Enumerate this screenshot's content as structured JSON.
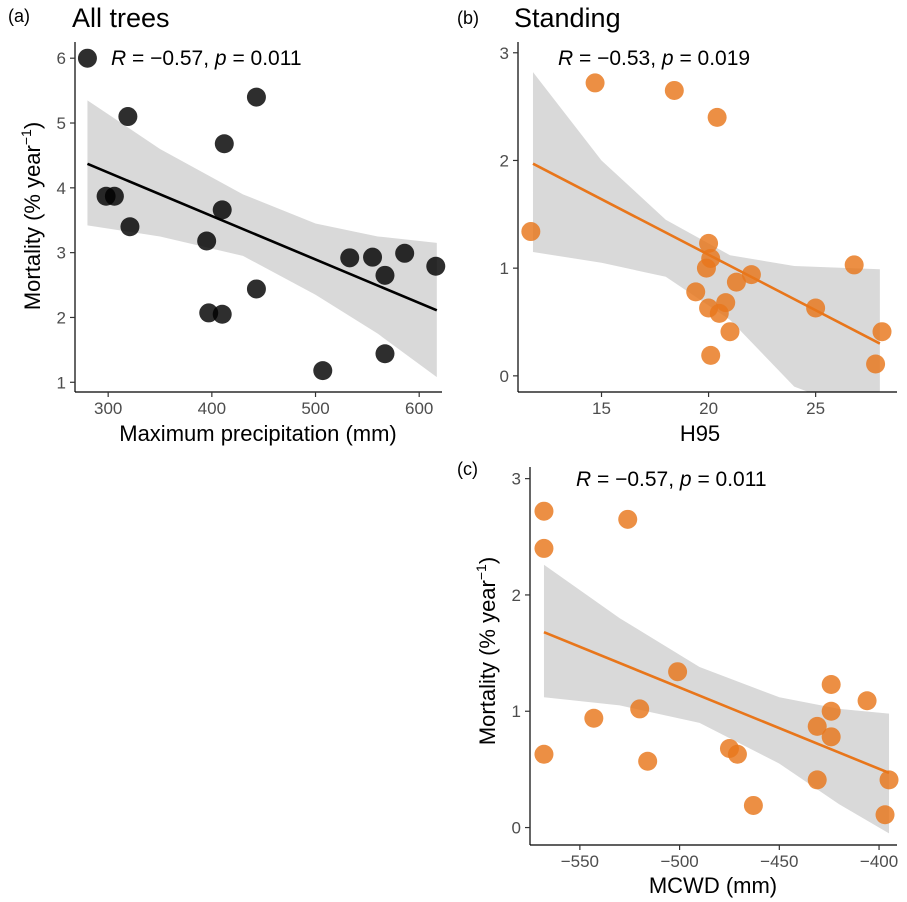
{
  "chart_data": [
    {
      "type": "scatter",
      "panel_label": "(a)",
      "title": "All trees",
      "stats": {
        "R": "R",
        "R_value": " = −0.57, ",
        "p": "p",
        "p_value": " = 0.011"
      },
      "xlabel": "Maximum precipitation (mm)",
      "ylabel": "Mortality (% year",
      "ylabel_sup": "−1",
      "ylabel_close": ")",
      "xlim": [
        268,
        622
      ],
      "ylim": [
        0.85,
        6.25
      ],
      "xticks": [
        300,
        400,
        500,
        600
      ],
      "yticks": [
        1,
        2,
        3,
        4,
        5,
        6
      ],
      "point_color": "#000000",
      "line_color": "#000000",
      "band_color": "#d9d9d9",
      "fit": {
        "x": [
          280,
          617
        ],
        "y": [
          4.37,
          2.11
        ]
      },
      "band_upper": [
        [
          280,
          5.35
        ],
        [
          350,
          4.6
        ],
        [
          430,
          3.9
        ],
        [
          500,
          3.45
        ],
        [
          560,
          3.25
        ],
        [
          617,
          3.15
        ]
      ],
      "band_lower": [
        [
          280,
          3.42
        ],
        [
          350,
          3.25
        ],
        [
          430,
          2.95
        ],
        [
          500,
          2.35
        ],
        [
          560,
          1.75
        ],
        [
          617,
          1.08
        ]
      ],
      "points": [
        {
          "x": 280,
          "y": 6.0
        },
        {
          "x": 319,
          "y": 5.1
        },
        {
          "x": 443,
          "y": 5.4
        },
        {
          "x": 412,
          "y": 4.68
        },
        {
          "x": 298,
          "y": 3.87
        },
        {
          "x": 306,
          "y": 3.87
        },
        {
          "x": 410,
          "y": 3.66
        },
        {
          "x": 321,
          "y": 3.4
        },
        {
          "x": 395,
          "y": 3.18
        },
        {
          "x": 533,
          "y": 2.92
        },
        {
          "x": 555,
          "y": 2.93
        },
        {
          "x": 586,
          "y": 2.99
        },
        {
          "x": 616,
          "y": 2.79
        },
        {
          "x": 567,
          "y": 2.65
        },
        {
          "x": 443,
          "y": 2.44
        },
        {
          "x": 397,
          "y": 2.07
        },
        {
          "x": 410,
          "y": 2.05
        },
        {
          "x": 567,
          "y": 1.44
        },
        {
          "x": 507,
          "y": 1.18
        }
      ]
    },
    {
      "type": "scatter",
      "panel_label": "(b)",
      "title": "Standing",
      "stats": {
        "R": "R",
        "R_value": " = −0.53, ",
        "p": "p",
        "p_value": " = 0.019"
      },
      "xlabel": "H95",
      "ylabel": "",
      "xlim": [
        11.1,
        28.8
      ],
      "ylim": [
        -0.15,
        3.1
      ],
      "xticks": [
        15,
        20,
        25
      ],
      "yticks": [
        0,
        1,
        2,
        3
      ],
      "point_color": "#e8761b",
      "line_color": "#e8761b",
      "band_color": "#d9d9d9",
      "fit": {
        "x": [
          11.8,
          28.0
        ],
        "y": [
          1.97,
          0.3
        ]
      },
      "band_upper": [
        [
          11.8,
          2.82
        ],
        [
          15,
          2.0
        ],
        [
          18,
          1.45
        ],
        [
          21,
          1.12
        ],
        [
          24,
          1.02
        ],
        [
          28,
          0.99
        ]
      ],
      "band_lower": [
        [
          11.8,
          1.15
        ],
        [
          15,
          1.05
        ],
        [
          18,
          0.92
        ],
        [
          21,
          0.52
        ],
        [
          24,
          -0.1
        ],
        [
          28,
          -0.4
        ]
      ],
      "points": [
        {
          "x": 14.7,
          "y": 2.72
        },
        {
          "x": 18.4,
          "y": 2.65
        },
        {
          "x": 20.4,
          "y": 2.4
        },
        {
          "x": 11.7,
          "y": 1.34
        },
        {
          "x": 20.0,
          "y": 1.23
        },
        {
          "x": 20.1,
          "y": 1.09
        },
        {
          "x": 19.9,
          "y": 1.0
        },
        {
          "x": 26.8,
          "y": 1.03
        },
        {
          "x": 22.0,
          "y": 0.94
        },
        {
          "x": 21.3,
          "y": 0.87
        },
        {
          "x": 19.4,
          "y": 0.78
        },
        {
          "x": 20.8,
          "y": 0.68
        },
        {
          "x": 20.0,
          "y": 0.63
        },
        {
          "x": 25.0,
          "y": 0.63
        },
        {
          "x": 20.5,
          "y": 0.58
        },
        {
          "x": 21.0,
          "y": 0.41
        },
        {
          "x": 28.1,
          "y": 0.41
        },
        {
          "x": 20.1,
          "y": 0.19
        },
        {
          "x": 27.8,
          "y": 0.11
        }
      ]
    },
    {
      "type": "scatter",
      "panel_label": "(c)",
      "title": "",
      "stats": {
        "R": "R",
        "R_value": " = −0.57, ",
        "p": "p",
        "p_value": " = 0.011"
      },
      "xlabel": "MCWD (mm)",
      "ylabel": "Mortality (% year",
      "ylabel_sup": "−1",
      "ylabel_close": ")",
      "xlim": [
        -575,
        -391
      ],
      "ylim": [
        -0.15,
        3.1
      ],
      "xticks": [
        -550,
        -500,
        -450,
        -400
      ],
      "yticks": [
        0,
        1,
        2,
        3
      ],
      "point_color": "#e8761b",
      "line_color": "#e8761b",
      "band_color": "#d9d9d9",
      "fit": {
        "x": [
          -568,
          -395
        ],
        "y": [
          1.68,
          0.47
        ]
      },
      "band_upper": [
        [
          -568,
          2.26
        ],
        [
          -530,
          1.8
        ],
        [
          -490,
          1.38
        ],
        [
          -450,
          1.12
        ],
        [
          -420,
          1.02
        ],
        [
          -395,
          0.98
        ]
      ],
      "band_lower": [
        [
          -568,
          1.12
        ],
        [
          -530,
          1.05
        ],
        [
          -490,
          0.9
        ],
        [
          -450,
          0.55
        ],
        [
          -420,
          0.2
        ],
        [
          -395,
          -0.05
        ]
      ],
      "points": [
        {
          "x": -568,
          "y": 2.72
        },
        {
          "x": -568,
          "y": 2.4
        },
        {
          "x": -526,
          "y": 2.65
        },
        {
          "x": -501,
          "y": 1.34
        },
        {
          "x": -424,
          "y": 1.23
        },
        {
          "x": -406,
          "y": 1.09
        },
        {
          "x": -520,
          "y": 1.02
        },
        {
          "x": -424,
          "y": 1.0
        },
        {
          "x": -543,
          "y": 0.94
        },
        {
          "x": -431,
          "y": 0.87
        },
        {
          "x": -424,
          "y": 0.78
        },
        {
          "x": -475,
          "y": 0.68
        },
        {
          "x": -568,
          "y": 0.63
        },
        {
          "x": -471,
          "y": 0.63
        },
        {
          "x": -516,
          "y": 0.57
        },
        {
          "x": -431,
          "y": 0.41
        },
        {
          "x": -395,
          "y": 0.41
        },
        {
          "x": -463,
          "y": 0.19
        },
        {
          "x": -397,
          "y": 0.11
        }
      ]
    }
  ]
}
